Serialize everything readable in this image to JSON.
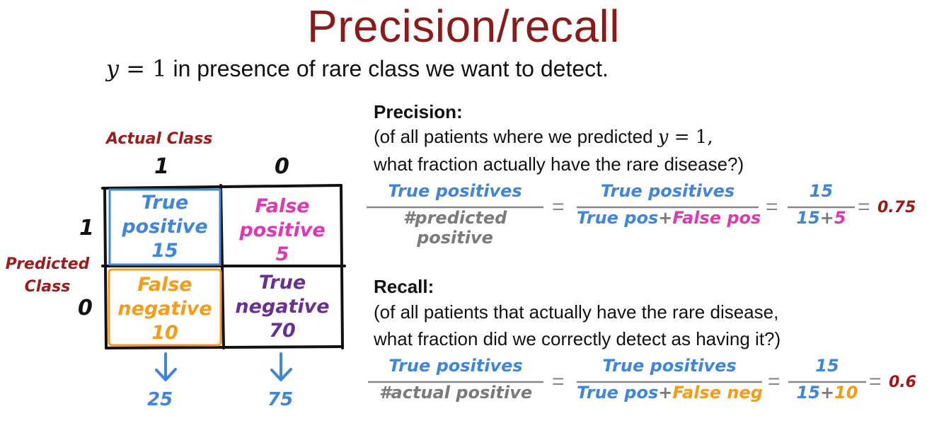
{
  "title": "Precision/recall",
  "subtitle": {
    "math_var": "y",
    "math_rest": " = 1",
    "text": " in presence of rare class we want to detect."
  },
  "matrix": {
    "actual_class_label": "Actual Class",
    "predicted_class_label_line1": "Predicted",
    "predicted_class_label_line2": "Class",
    "col_labels": [
      "1",
      "0"
    ],
    "row_labels": [
      "1",
      "0"
    ],
    "cells": {
      "tp": {
        "line1": "True",
        "line2": "positive",
        "value": "15"
      },
      "fp": {
        "line1": "False",
        "line2": "positive",
        "value": "5"
      },
      "fn": {
        "line1": "False",
        "line2": "negative",
        "value": "10"
      },
      "tn": {
        "line1": "True",
        "line2": "negative",
        "value": "70"
      }
    },
    "col_totals": [
      "25",
      "75"
    ]
  },
  "precision": {
    "heading": "Precision:",
    "line1_pre": "(of all patients where we predicted ",
    "line1_math_var": "y",
    "line1_math_rest": " = 1,",
    "line2": "what fraction actually have the rare disease?)",
    "frac1_num": "True positives",
    "frac1_den": "#predicted positive",
    "frac2_num": "True positives",
    "frac2_den_a": "True pos",
    "frac2_den_plus": "+",
    "frac2_den_b": "False pos",
    "frac3_num": "15",
    "frac3_den_a": "15",
    "frac3_den_plus": "+",
    "frac3_den_b": "5",
    "equals": "=",
    "result": "0.75"
  },
  "recall": {
    "heading": "Recall:",
    "line1": "(of all patients that actually have the rare disease,",
    "line2": "what fraction did we correctly detect as having it?)",
    "frac1_num": "True positives",
    "frac1_den": "#actual positive",
    "frac2_num": "True positives",
    "frac2_den_a": "True pos",
    "frac2_den_plus": "+",
    "frac2_den_b": "False neg",
    "frac3_num": "15",
    "frac3_den_a": "15",
    "frac3_den_plus": "+",
    "frac3_den_b": "10",
    "equals": "=",
    "result": "0.6"
  },
  "colors": {
    "title": "#8b1a1a",
    "blue": "#3f86db",
    "pink": "#e235b4",
    "orange": "#f49b17",
    "purple": "#6a2f95",
    "gray": "#7a7a7a",
    "result_red": "#a31515"
  },
  "icons": [
    "down-arrow-icon"
  ]
}
